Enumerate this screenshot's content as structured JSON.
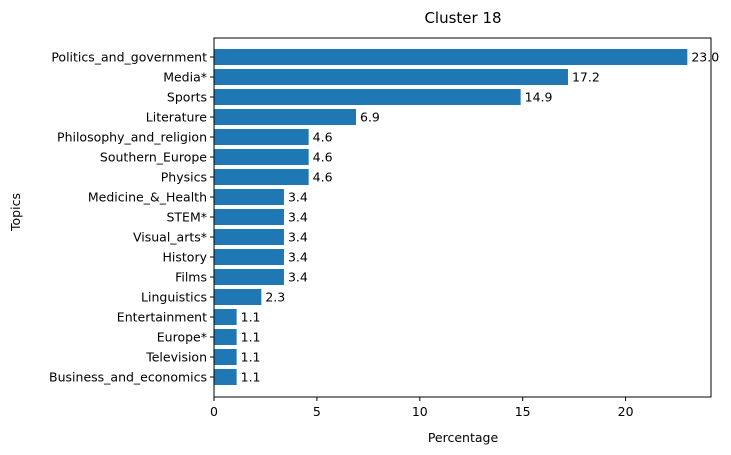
{
  "chart_data": {
    "type": "bar",
    "orientation": "horizontal",
    "title": "Cluster 18",
    "xlabel": "Percentage",
    "ylabel": "Topics",
    "xlim": [
      0,
      24.15
    ],
    "xticks": [
      0,
      5,
      10,
      15,
      20
    ],
    "grid": false,
    "legend": "none",
    "bar_color": "#1f77b4",
    "categories": [
      "Politics_and_government",
      "Media*",
      "Sports",
      "Literature",
      "Philosophy_and_religion",
      "Southern_Europe",
      "Physics",
      "Medicine_&_Health",
      "STEM*",
      "Visual_arts*",
      "History",
      "Films",
      "Linguistics",
      "Entertainment",
      "Europe*",
      "Television",
      "Business_and_economics"
    ],
    "values": [
      23.0,
      17.2,
      14.9,
      6.9,
      4.6,
      4.6,
      4.6,
      3.4,
      3.4,
      3.4,
      3.4,
      3.4,
      2.3,
      1.1,
      1.1,
      1.1,
      1.1
    ],
    "value_labels": [
      "23.0",
      "17.2",
      "14.9",
      "6.9",
      "4.6",
      "4.6",
      "4.6",
      "3.4",
      "3.4",
      "3.4",
      "3.4",
      "3.4",
      "2.3",
      "1.1",
      "1.1",
      "1.1",
      "1.1"
    ]
  }
}
